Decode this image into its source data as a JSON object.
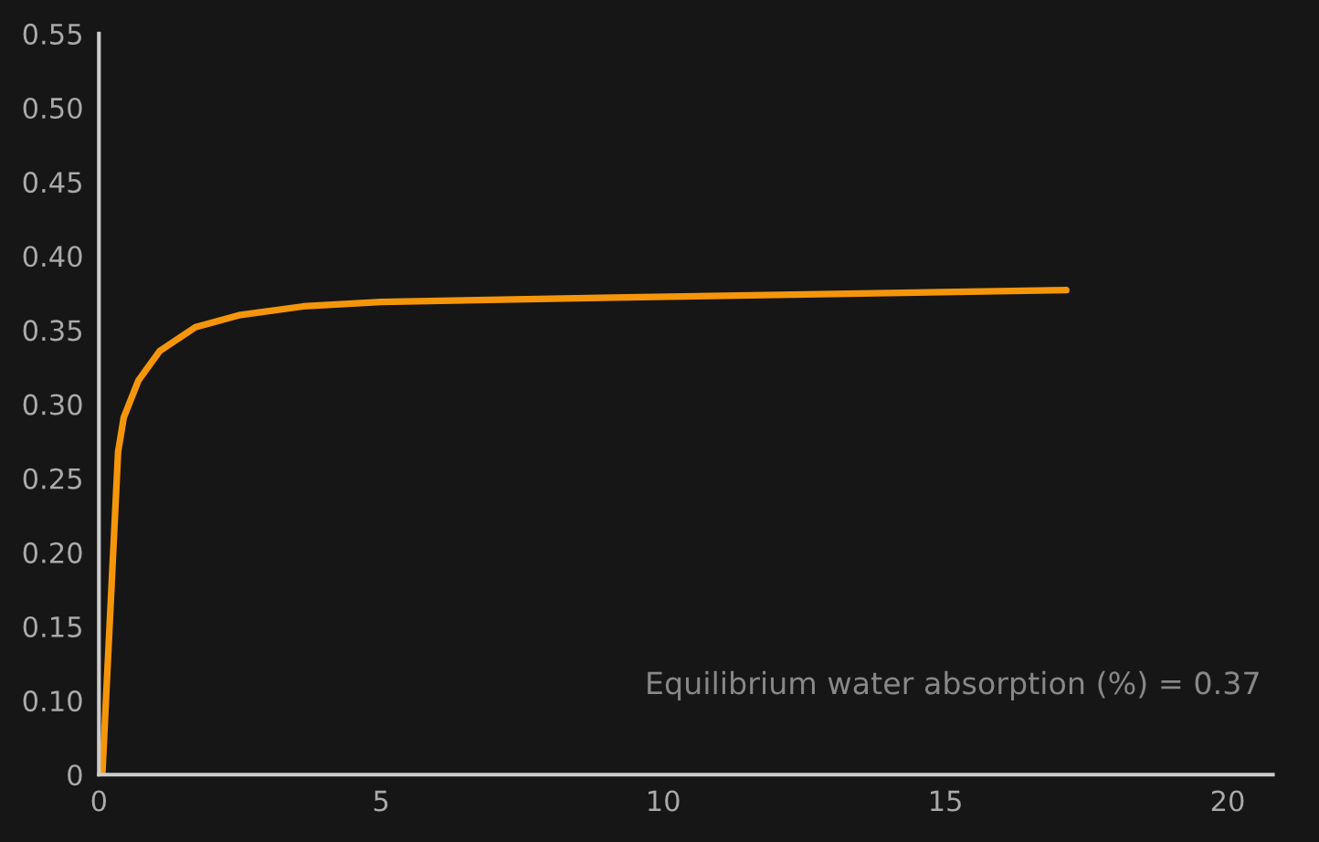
{
  "chart_data": {
    "type": "line",
    "x": [
      0.06,
      0.34,
      0.44,
      0.7,
      1.08,
      1.71,
      2.48,
      3.62,
      5.0,
      9.33,
      17.14
    ],
    "series": [
      {
        "color": "#f5960a",
        "values": [
          0.05,
          0.268,
          0.291,
          0.316,
          0.336,
          0.352,
          0.36,
          0.366,
          0.369,
          0.372,
          0.377
        ]
      }
    ],
    "xlim": [
      0,
      20.8
    ],
    "xticks": [
      0,
      5,
      10,
      15,
      20
    ],
    "ylim": [
      0.05,
      0.55
    ],
    "yticks": [
      {
        "value": 0.05,
        "label": "0"
      },
      {
        "value": 0.1,
        "label": "0.10"
      },
      {
        "value": 0.15,
        "label": "0.15"
      },
      {
        "value": 0.2,
        "label": "0.20"
      },
      {
        "value": 0.25,
        "label": "0.25"
      },
      {
        "value": 0.3,
        "label": "0.30"
      },
      {
        "value": 0.35,
        "label": "0.35"
      },
      {
        "value": 0.4,
        "label": "0.40"
      },
      {
        "value": 0.45,
        "label": "0.45"
      },
      {
        "value": 0.5,
        "label": "0.50"
      },
      {
        "value": 0.55,
        "label": "0.55"
      }
    ],
    "annotations": [
      "Equilibrium water absorption (%) = 0.37"
    ],
    "grid": false,
    "marker": "none",
    "line_style": "solid"
  }
}
